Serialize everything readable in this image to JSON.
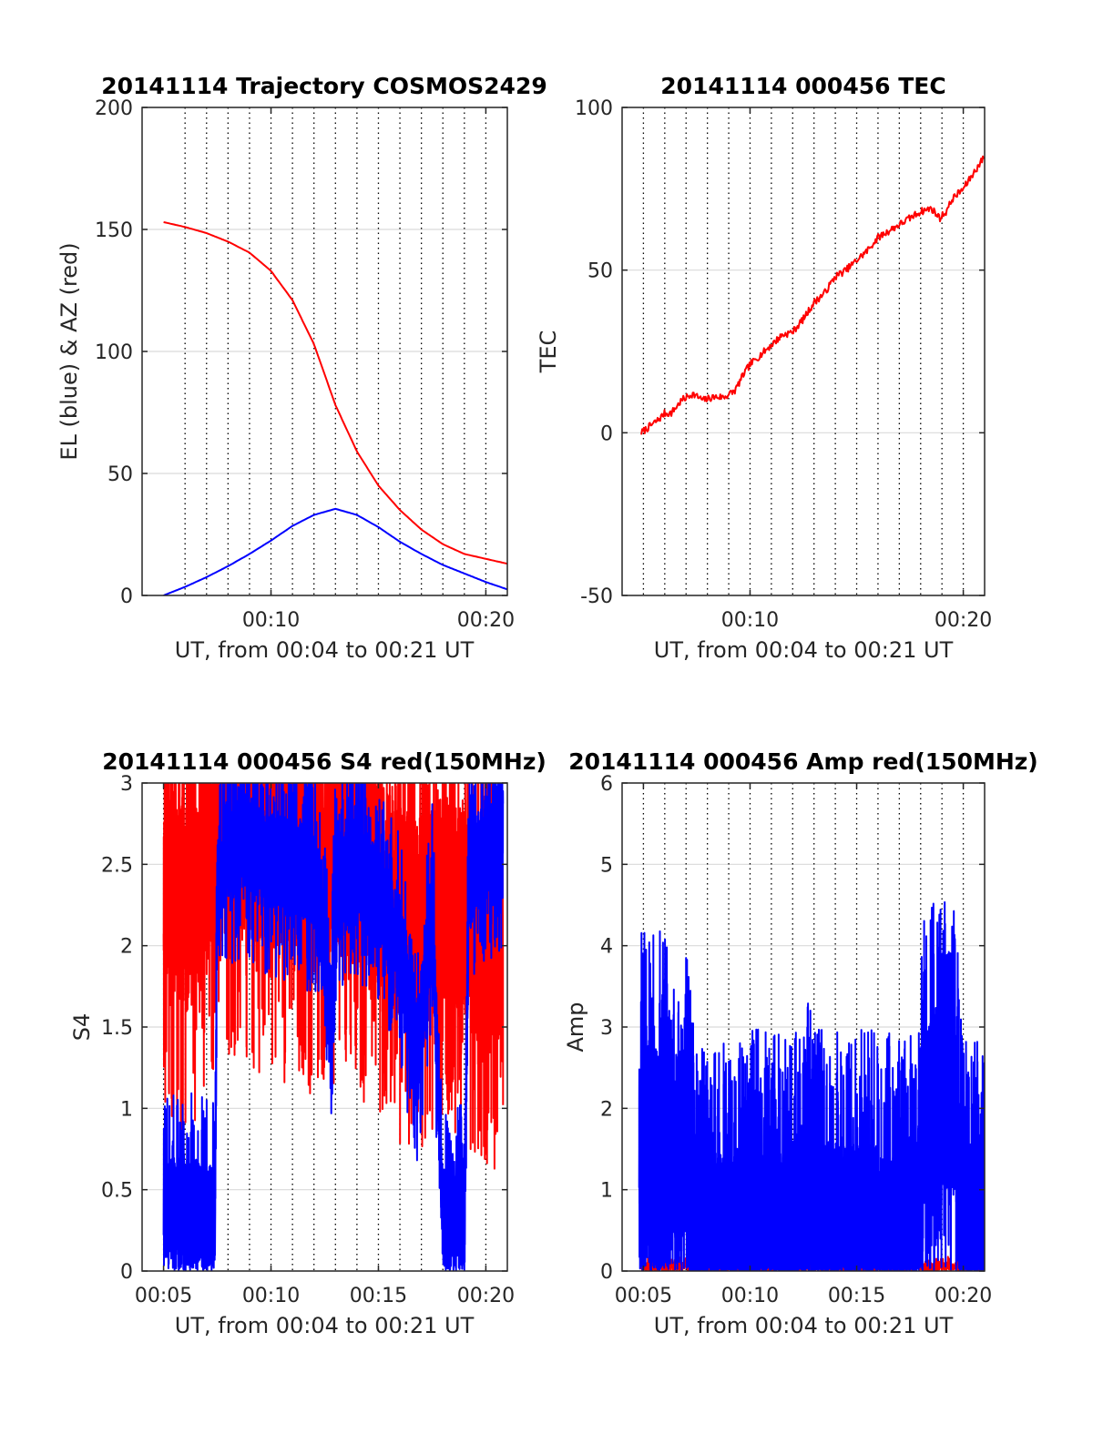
{
  "colors": {
    "el": "#0000ff",
    "az": "#ff0000",
    "tec": "#ff0000",
    "red": "#ff0000",
    "blue": "#0000ff",
    "grid": "#d9d9d9",
    "axis": "#262626"
  },
  "chart_data": [
    {
      "id": "trajectory",
      "type": "line",
      "title": "20141114 Trajectory COSMOS2429",
      "xlabel": "UT, from 00:04 to 00:21 UT",
      "ylabel": "EL (blue) & AZ (red)",
      "xlim": [
        4.0,
        21.0
      ],
      "ylim": [
        0,
        200
      ],
      "xticks": [
        10,
        20
      ],
      "xtick_labels": [
        "00:10",
        "00:20"
      ],
      "yticks": [
        0,
        50,
        100,
        150,
        200
      ],
      "ytick_labels": [
        "0",
        "50",
        "100",
        "150",
        "200"
      ],
      "minute_lines": [
        6,
        7,
        8,
        9,
        10,
        11,
        12,
        13,
        14,
        15,
        16,
        17,
        18,
        19,
        20
      ],
      "grid": true,
      "series": [
        {
          "color": "red",
          "x": [
            5.0,
            6.0,
            7.0,
            8.0,
            9.0,
            10.0,
            11.0,
            12.0,
            13.0,
            14.0,
            15.0,
            16.0,
            17.0,
            18.0,
            19.0,
            20.0,
            21.0
          ],
          "y": [
            153,
            151,
            148.5,
            145,
            140.5,
            133,
            121,
            103,
            78,
            59,
            45,
            35,
            27,
            21,
            17,
            15,
            13
          ]
        },
        {
          "color": "blue",
          "x": [
            5.0,
            6.0,
            7.0,
            8.0,
            9.0,
            10.0,
            11.0,
            12.0,
            13.0,
            14.0,
            15.0,
            16.0,
            17.0,
            18.0,
            19.0,
            20.0,
            21.0
          ],
          "y": [
            0,
            3.5,
            7.5,
            12,
            17,
            22.5,
            28.5,
            33,
            35.5,
            33,
            28,
            22,
            17,
            12.5,
            9,
            5.5,
            2.5
          ]
        }
      ]
    },
    {
      "id": "tec",
      "type": "line",
      "title": "20141114 000456 TEC",
      "xlabel": "UT, from 00:04 to 00:21 UT",
      "ylabel": "TEC",
      "xlim": [
        4.0,
        21.0
      ],
      "ylim": [
        -50,
        100
      ],
      "xticks": [
        10,
        20
      ],
      "xtick_labels": [
        "00:10",
        "00:20"
      ],
      "yticks": [
        -50,
        0,
        50,
        100
      ],
      "ytick_labels": [
        "-50",
        "0",
        "50",
        "100"
      ],
      "minute_lines": [
        5,
        6,
        7,
        8,
        9,
        10,
        11,
        12,
        13,
        14,
        15,
        16,
        17,
        18,
        19,
        20
      ],
      "grid": true,
      "series": [
        {
          "color": "red",
          "x": [
            4.9,
            5.3,
            5.7,
            6.0,
            6.3,
            6.8,
            7.3,
            7.8,
            8.3,
            8.8,
            9.3,
            9.7,
            10.0,
            10.5,
            11.0,
            11.5,
            12.0,
            12.5,
            13.0,
            13.5,
            14.0,
            14.5,
            15.0,
            15.5,
            16.0,
            16.5,
            17.0,
            17.5,
            18.0,
            18.5,
            18.9,
            19.2,
            19.5,
            20.0,
            20.5,
            21.0
          ],
          "y": [
            0,
            2,
            4,
            6,
            6,
            10,
            12,
            10,
            11,
            11,
            13,
            18,
            21,
            24,
            27,
            30,
            31,
            35,
            40,
            43,
            48,
            50,
            53,
            56,
            60,
            62,
            64,
            66,
            68,
            69,
            66,
            68,
            72,
            75,
            80,
            85
          ]
        }
      ]
    },
    {
      "id": "s4",
      "type": "line",
      "title": "20141114 000456 S4 red(150MHz)",
      "xlabel": "UT, from 00:04 to 00:21 UT",
      "ylabel": "S4",
      "xlim": [
        4.0,
        21.0
      ],
      "ylim": [
        0,
        3
      ],
      "xticks": [
        5,
        10,
        15,
        20
      ],
      "xtick_labels": [
        "00:05",
        "00:10",
        "00:15",
        "00:20"
      ],
      "yticks": [
        0,
        0.5,
        1,
        1.5,
        2,
        2.5,
        3
      ],
      "ytick_labels": [
        "0",
        "0.5",
        "1",
        "1.5",
        "2",
        "2.5",
        "3"
      ],
      "minute_lines": [
        5,
        6,
        7,
        8,
        9,
        10,
        11,
        12,
        13,
        14,
        15,
        16,
        17,
        18,
        19,
        20
      ],
      "grid": true,
      "series": [
        {
          "color": "red",
          "style": "noisy",
          "seed": 11,
          "density": 240,
          "x": [
            5.0,
            5.6,
            6.2,
            7.0,
            7.4,
            8.0,
            9.0,
            10.0,
            11.0,
            12.0,
            13.0,
            14.0,
            15.0,
            16.0,
            17.0,
            18.0,
            19.0,
            20.0,
            20.8
          ],
          "y": [
            2.4,
            2.3,
            2.2,
            2.5,
            2.6,
            2.7,
            2.7,
            2.6,
            2.6,
            2.5,
            2.6,
            2.5,
            2.4,
            2.2,
            2.2,
            2.3,
            2.2,
            2.1,
            2.0
          ],
          "amp": 0.9
        },
        {
          "color": "blue",
          "style": "noisy",
          "seed": 29,
          "density": 260,
          "x": [
            5.0,
            6.0,
            7.0,
            7.4,
            7.5,
            8.0,
            9.0,
            10.0,
            11.0,
            12.0,
            12.8,
            13.0,
            13.5,
            14.0,
            15.0,
            16.0,
            16.8,
            17.5,
            18.0,
            19.0,
            19.2,
            20.0,
            20.8
          ],
          "y": [
            0.38,
            0.4,
            0.35,
            0.33,
            2.4,
            2.6,
            2.6,
            2.5,
            2.5,
            2.4,
            1.6,
            2.3,
            2.4,
            2.5,
            2.3,
            2.0,
            1.3,
            2.2,
            0.33,
            0.3,
            2.4,
            2.6,
            2.7
          ],
          "amp": 0.45
        }
      ]
    },
    {
      "id": "amp",
      "type": "line",
      "title": "20141114 000456 Amp red(150MHz)",
      "xlabel": "UT, from 00:04 to 00:21 UT",
      "ylabel": "Amp",
      "xlim": [
        4.0,
        21.0
      ],
      "ylim": [
        0,
        6
      ],
      "xticks": [
        5,
        10,
        15,
        20
      ],
      "xtick_labels": [
        "00:05",
        "00:10",
        "00:15",
        "00:20"
      ],
      "yticks": [
        0,
        1,
        2,
        3,
        4,
        5,
        6
      ],
      "ytick_labels": [
        "0",
        "1",
        "2",
        "3",
        "4",
        "5",
        "6"
      ],
      "minute_lines": [
        5,
        6,
        7,
        8,
        9,
        10,
        11,
        12,
        13,
        14,
        15,
        16,
        17,
        18,
        19,
        20
      ],
      "grid": true,
      "series": [
        {
          "color": "red",
          "style": "noisy",
          "seed": 5,
          "density": 120,
          "x": [
            4.9,
            7.3,
            7.4,
            18.2,
            18.3,
            19.8,
            21.0
          ],
          "y": [
            0.05,
            0.05,
            0.0,
            0.0,
            0.05,
            0.05,
            0.0
          ],
          "amp": 0.08
        },
        {
          "color": "blue",
          "style": "noisy",
          "seed": 17,
          "density": 420,
          "x": [
            4.8,
            5.2,
            6.0,
            7.0,
            7.5,
            8.0,
            9.0,
            10.0,
            10.3,
            11.0,
            12.0,
            12.5,
            12.7,
            13.0,
            14.0,
            15.0,
            16.0,
            17.0,
            17.8,
            18.2,
            19.0,
            19.6,
            20.0,
            21.0
          ],
          "y": [
            1.6,
            1.7,
            1.6,
            1.5,
            0.25,
            0.25,
            0.3,
            0.35,
            0.6,
            0.35,
            0.4,
            0.6,
            1.2,
            0.4,
            0.45,
            0.45,
            0.4,
            0.35,
            0.4,
            2.0,
            2.2,
            2.0,
            0.3,
            0.25
          ],
          "amp": 1.6
        }
      ]
    }
  ]
}
